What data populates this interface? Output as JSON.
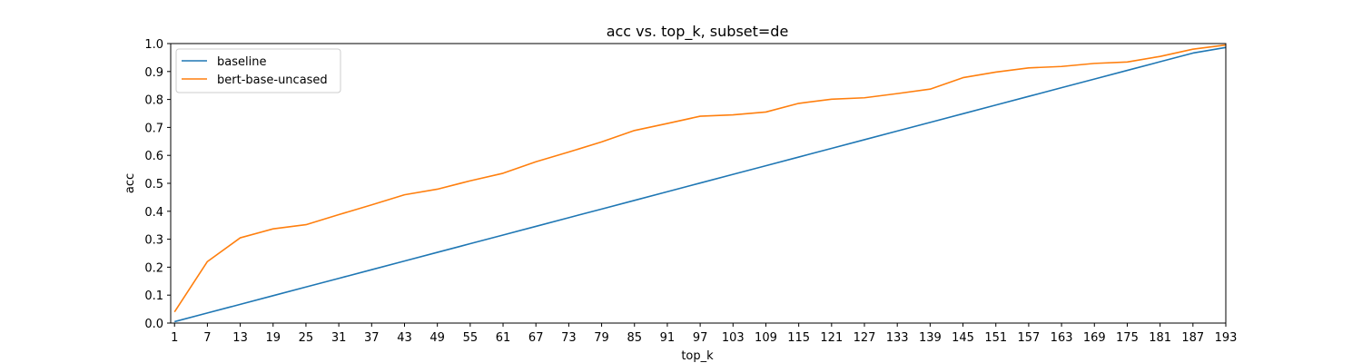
{
  "chart_data": {
    "type": "line",
    "title": "acc vs. top_k, subset=de",
    "xlabel": "top_k",
    "ylabel": "acc",
    "xlim": [
      0,
      193
    ],
    "ylim": [
      0,
      1.0
    ],
    "xticks": [
      1,
      7,
      13,
      19,
      25,
      31,
      37,
      43,
      49,
      55,
      61,
      67,
      73,
      79,
      85,
      91,
      97,
      103,
      109,
      115,
      121,
      127,
      133,
      139,
      145,
      151,
      157,
      163,
      169,
      175,
      181,
      187,
      193
    ],
    "yticks": [
      0.0,
      0.1,
      0.2,
      0.3,
      0.4,
      0.5,
      0.6,
      0.7,
      0.8,
      0.9,
      1.0
    ],
    "grid": false,
    "legend_position": "top-left",
    "x": [
      1,
      7,
      13,
      19,
      25,
      31,
      37,
      43,
      49,
      55,
      61,
      67,
      73,
      79,
      85,
      91,
      97,
      103,
      109,
      115,
      121,
      127,
      133,
      139,
      145,
      151,
      157,
      163,
      169,
      175,
      181,
      187,
      193
    ],
    "series": [
      {
        "name": "baseline",
        "color": "#1f77b4",
        "values": [
          0.005,
          0.036,
          0.067,
          0.098,
          0.129,
          0.16,
          0.191,
          0.222,
          0.253,
          0.284,
          0.315,
          0.346,
          0.377,
          0.408,
          0.439,
          0.47,
          0.501,
          0.532,
          0.563,
          0.594,
          0.625,
          0.656,
          0.687,
          0.718,
          0.749,
          0.78,
          0.811,
          0.842,
          0.873,
          0.904,
          0.935,
          0.966,
          0.986
        ]
      },
      {
        "name": "bert-base-uncased",
        "color": "#ff7f0e",
        "values": [
          0.04,
          0.22,
          0.305,
          0.337,
          0.352,
          0.388,
          0.423,
          0.459,
          0.479,
          0.509,
          0.536,
          0.577,
          0.612,
          0.648,
          0.689,
          0.714,
          0.74,
          0.745,
          0.755,
          0.786,
          0.801,
          0.806,
          0.821,
          0.837,
          0.878,
          0.898,
          0.913,
          0.918,
          0.929,
          0.934,
          0.954,
          0.98,
          0.995
        ]
      }
    ]
  }
}
